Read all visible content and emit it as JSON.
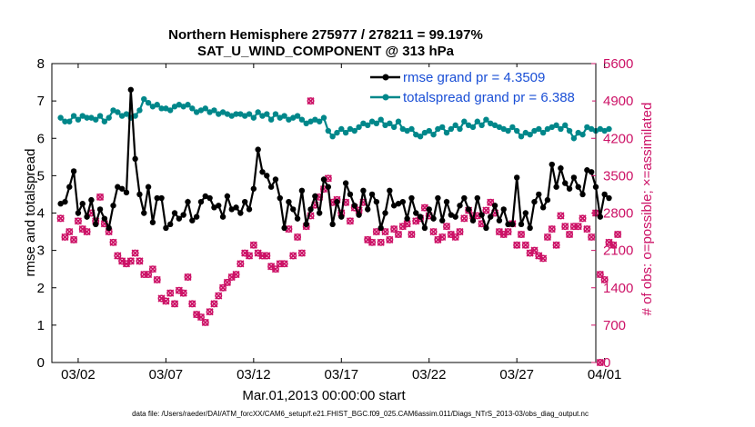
{
  "chart_data": {
    "type": "line",
    "title_line1": "Northern Hemisphere 275977 / 278211 = 99.197%",
    "title_line2": "SAT_U_WIND_COMPONENT @ 313 hPa",
    "xlabel": "Mar.01,2013 00:00:00 start",
    "ylabel_left": "rmse and totalspread",
    "ylabel_right": "# of obs: o=possible; ×=assimilated",
    "footer": "data file: /Users/raeder/DAI/ATM_forcXX/CAM6_setup/f.e21.FHIST_BGC.f09_025.CAM6assim.011/Diags_NTrS_2013-03/obs_diag_output.nc",
    "xlim": [
      0.5,
      31.5
    ],
    "ylim_left": [
      0,
      8
    ],
    "ylim_right": [
      0,
      5600
    ],
    "x_ticks": [
      2,
      7,
      12,
      17,
      22,
      27,
      32
    ],
    "x_tick_labels": [
      "03/02",
      "03/07",
      "03/12",
      "03/17",
      "03/22",
      "03/27",
      "04/01"
    ],
    "y_ticks_left": [
      0,
      1,
      2,
      3,
      4,
      5,
      6,
      7,
      8
    ],
    "y_ticks_right": [
      0,
      700,
      1400,
      2100,
      2800,
      3500,
      4200,
      4900,
      5600
    ],
    "colors": {
      "rmse": "#000000",
      "spread": "#00878a",
      "obs": "#cc1166",
      "legend_text": "#1a4fd6"
    },
    "series": [
      {
        "name": "rmse grand pr = 4.3509",
        "axis": "left",
        "x_start": 1.0,
        "x_step": 0.25,
        "values": [
          4.25,
          4.3,
          4.7,
          5.12,
          4.0,
          4.25,
          3.9,
          4.35,
          3.7,
          4.1,
          3.85,
          3.6,
          4.2,
          4.7,
          4.65,
          4.55,
          7.3,
          5.45,
          4.5,
          4.0,
          4.7,
          3.75,
          4.4,
          4.4,
          3.6,
          3.7,
          4.0,
          3.85,
          3.95,
          4.3,
          3.8,
          3.9,
          4.3,
          4.45,
          4.4,
          4.15,
          4.2,
          3.9,
          4.45,
          4.1,
          4.15,
          4.0,
          4.3,
          4.1,
          4.65,
          5.7,
          5.1,
          5.0,
          4.7,
          4.9,
          4.4,
          3.6,
          4.3,
          4.1,
          3.85,
          4.6,
          3.7,
          4.1,
          4.45,
          4.0,
          4.9,
          4.7,
          3.7,
          4.3,
          3.9,
          4.8,
          4.5,
          4.2,
          3.95,
          4.6,
          4.1,
          4.5,
          4.3,
          3.6,
          4.0,
          4.6,
          4.2,
          4.25,
          4.3,
          3.85,
          4.4,
          4.0,
          3.9,
          3.6,
          4.1,
          3.85,
          4.4,
          3.8,
          4.3,
          3.95,
          3.9,
          4.2,
          4.4,
          4.1,
          3.8,
          4.4,
          3.95,
          3.6,
          3.9,
          4.2,
          3.8,
          4.1,
          3.7,
          3.7,
          4.95,
          3.7,
          4.0,
          3.6,
          4.3,
          4.5,
          4.15,
          4.35,
          5.3,
          4.7,
          5.2,
          4.8,
          4.65,
          4.95,
          4.7,
          4.5,
          5.15,
          5.1,
          4.7,
          3.9,
          4.5,
          4.4
        ]
      },
      {
        "name": "totalspread grand pr = 6.388",
        "axis": "left",
        "x_start": 1.0,
        "x_step": 0.25,
        "values": [
          6.55,
          6.45,
          6.45,
          6.6,
          6.5,
          6.6,
          6.55,
          6.55,
          6.5,
          6.6,
          6.45,
          6.55,
          6.75,
          6.7,
          6.6,
          6.65,
          6.55,
          6.6,
          6.75,
          7.05,
          6.95,
          6.85,
          6.9,
          6.8,
          6.8,
          6.75,
          6.85,
          6.9,
          6.85,
          6.9,
          6.8,
          6.7,
          6.75,
          6.8,
          6.7,
          6.75,
          6.65,
          6.7,
          6.65,
          6.6,
          6.65,
          6.65,
          6.6,
          6.65,
          6.55,
          6.7,
          6.6,
          6.65,
          6.5,
          6.65,
          6.55,
          6.6,
          6.5,
          6.55,
          6.6,
          6.5,
          6.4,
          6.45,
          6.5,
          6.45,
          6.55,
          6.2,
          6.05,
          6.15,
          6.25,
          6.15,
          6.25,
          6.2,
          6.3,
          6.4,
          6.35,
          6.45,
          6.4,
          6.5,
          6.35,
          6.4,
          6.3,
          6.45,
          6.25,
          6.2,
          6.25,
          6.1,
          6.05,
          6.15,
          6.2,
          6.1,
          6.25,
          6.3,
          6.15,
          6.25,
          6.35,
          6.25,
          6.45,
          6.35,
          6.3,
          6.45,
          6.35,
          6.5,
          6.4,
          6.35,
          6.3,
          6.25,
          6.2,
          6.3,
          6.2,
          6.05,
          6.15,
          6.1,
          6.2,
          6.25,
          6.15,
          6.25,
          6.3,
          6.35,
          6.25,
          6.35,
          6.2,
          6.0,
          6.15,
          6.1,
          6.3,
          6.25,
          6.2,
          6.25,
          6.2,
          6.25
        ]
      },
      {
        "name": "# of obs assimilated",
        "axis": "right",
        "x_start": 1.0,
        "x_step": 0.25,
        "values": [
          2700,
          2350,
          2450,
          2300,
          2650,
          2500,
          2450,
          2800,
          2650,
          3100,
          2600,
          2450,
          2250,
          2000,
          1900,
          1850,
          1900,
          2050,
          1900,
          1650,
          1650,
          1750,
          1550,
          1200,
          1150,
          1300,
          1100,
          1350,
          1300,
          1600,
          1100,
          900,
          850,
          750,
          950,
          1100,
          1250,
          1400,
          1500,
          1600,
          1650,
          1850,
          2050,
          2000,
          2200,
          2050,
          2000,
          2000,
          1800,
          1750,
          1850,
          1850,
          2500,
          2000,
          2350,
          2050,
          2550,
          2750,
          2950,
          3100,
          3250,
          3450,
          3000,
          3050,
          2800,
          3000,
          2650,
          2900,
          2850,
          3000,
          2300,
          2250,
          2450,
          2250,
          2450,
          2300,
          2500,
          2400,
          2550,
          2600,
          2400,
          2650,
          2700,
          2900,
          2750,
          2450,
          2300,
          2350,
          2550,
          2400,
          2350,
          2450,
          2700,
          2850,
          2750,
          2750,
          2600,
          2850,
          3000,
          2800,
          2450,
          2400,
          2450,
          2600,
          2200,
          2400,
          2200,
          2050,
          2100,
          2000,
          1950,
          2350,
          2500,
          2200,
          2750,
          2550,
          2400,
          2550,
          2550,
          2700,
          2500,
          2350,
          2800,
          1650,
          1550,
          2250,
          2200,
          2400
        ]
      },
      {
        "name": "# of obs possible",
        "axis": "right",
        "x_start": 1.0,
        "x_step": 0.25,
        "values": [
          2700,
          2350,
          2450,
          2300,
          2650,
          2500,
          2450,
          2800,
          2650,
          3100,
          2600,
          2450,
          2250,
          2000,
          1900,
          1850,
          1900,
          2050,
          1900,
          1650,
          1650,
          1750,
          1550,
          1200,
          1150,
          1300,
          1100,
          1350,
          1300,
          1600,
          1100,
          900,
          850,
          750,
          950,
          1100,
          1250,
          1400,
          1500,
          1600,
          1650,
          1850,
          2050,
          2000,
          2200,
          2050,
          2000,
          2000,
          1800,
          1750,
          1850,
          1850,
          2500,
          2000,
          2350,
          2050,
          2550,
          2750,
          2950,
          3100,
          3250,
          3450,
          3000,
          3050,
          2800,
          3000,
          2650,
          2900,
          2850,
          3000,
          2300,
          2250,
          2450,
          2250,
          2450,
          2300,
          2500,
          2400,
          2550,
          2600,
          2400,
          2650,
          2700,
          2900,
          2750,
          2450,
          2300,
          2350,
          2550,
          2400,
          2350,
          2450,
          2700,
          2850,
          2750,
          2750,
          2600,
          2850,
          3000,
          2800,
          2450,
          2400,
          2450,
          2600,
          2200,
          2400,
          2200,
          2050,
          2100,
          2000,
          1950,
          2350,
          2500,
          2200,
          2750,
          2550,
          2400,
          2550,
          2550,
          2700,
          2500,
          2350,
          2800,
          1650,
          1550,
          2250,
          2200,
          2400
        ]
      }
    ],
    "extra_obs_points": [
      {
        "x": 15.25,
        "y": 4900
      },
      {
        "x": 31.75,
        "y": 0
      }
    ]
  }
}
